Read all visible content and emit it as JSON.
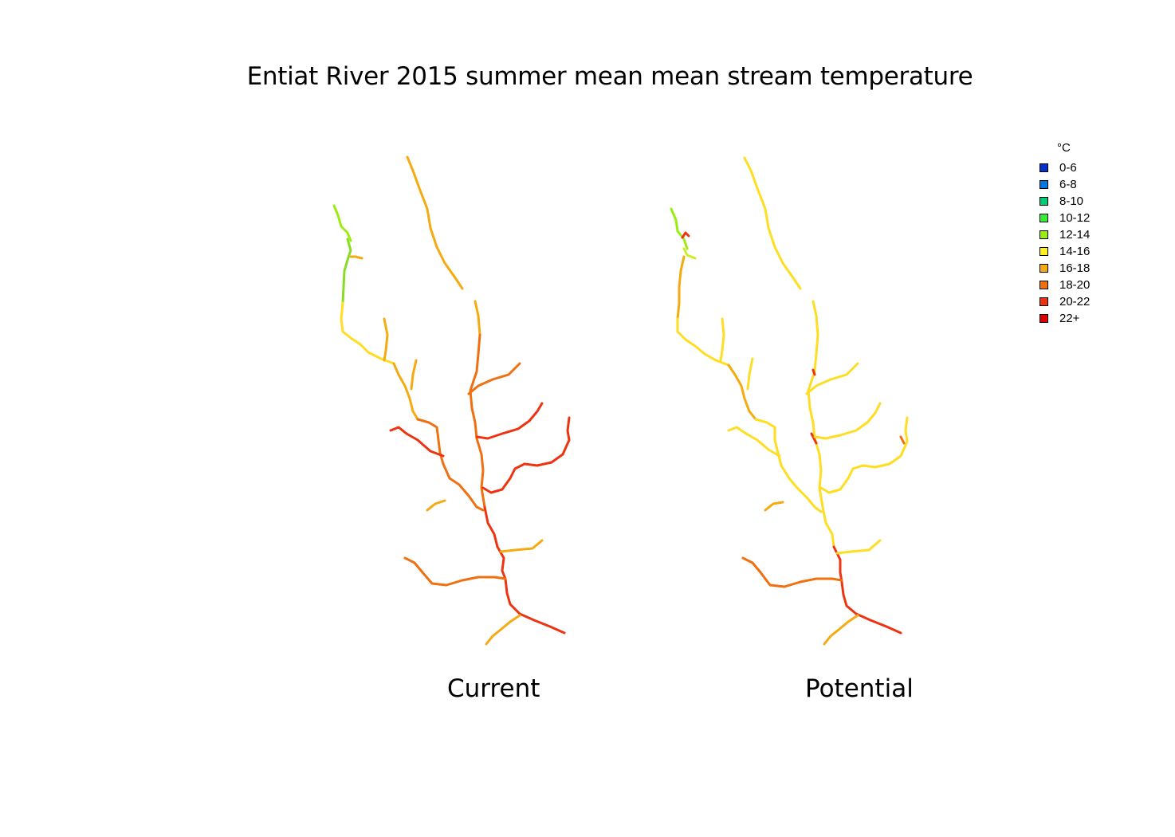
{
  "title": "Entiat River 2015 summer mean mean stream temperature",
  "maps": [
    {
      "label": "Current"
    },
    {
      "label": "Potential"
    }
  ],
  "legend": {
    "unit": "°C",
    "items": [
      {
        "label": "0-6",
        "color": "#0033cc"
      },
      {
        "label": "6-8",
        "color": "#0077dd"
      },
      {
        "label": "8-10",
        "color": "#00cc77"
      },
      {
        "label": "10-12",
        "color": "#33ee33"
      },
      {
        "label": "12-14",
        "color": "#99ee11"
      },
      {
        "label": "14-16",
        "color": "#ffee22"
      },
      {
        "label": "16-18",
        "color": "#f5aa10"
      },
      {
        "label": "18-20",
        "color": "#f07010"
      },
      {
        "label": "20-22",
        "color": "#ee3311"
      },
      {
        "label": "22+",
        "color": "#dd0000"
      }
    ]
  }
}
